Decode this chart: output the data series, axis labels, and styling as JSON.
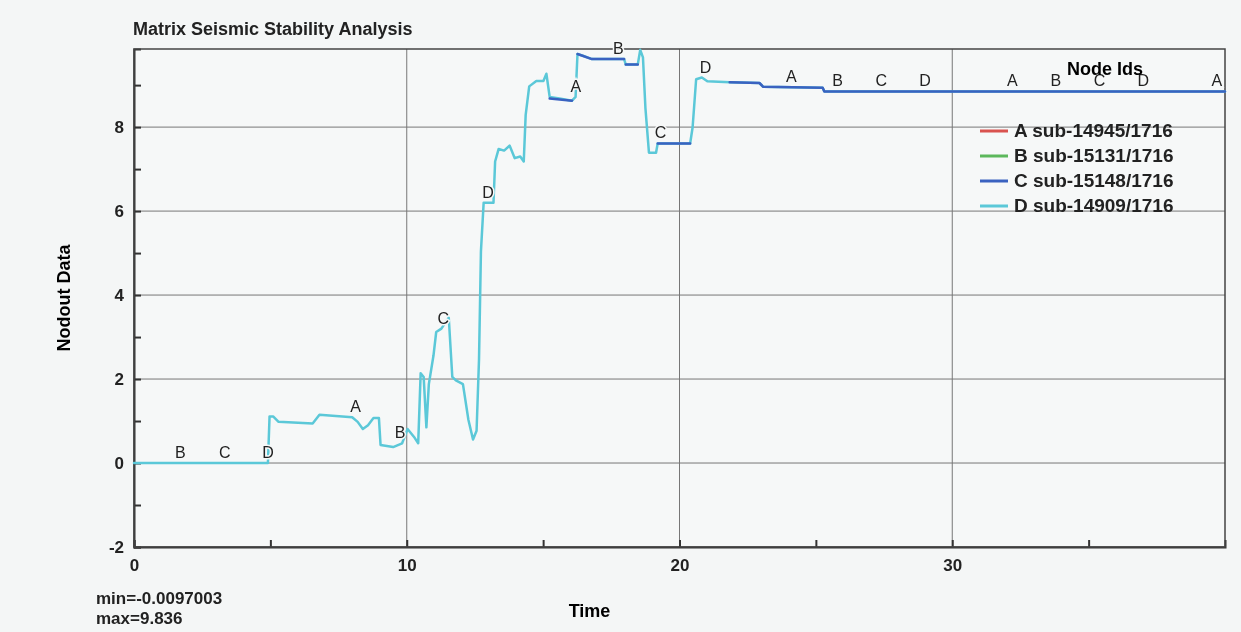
{
  "chart_data": {
    "type": "line",
    "title": "Matrix Seismic Stability Analysis",
    "xlabel": "Time",
    "ylabel": "Nodout Data",
    "legend_title": "Node Ids",
    "legend": "top right",
    "grid": true,
    "xlim": [
      0,
      40
    ],
    "ylim": [
      -2,
      9.86
    ],
    "xticks": [
      0,
      10,
      20,
      30,
      {
        "value": 5,
        "label": null
      },
      {
        "value": 15,
        "label": null
      },
      {
        "value": 25,
        "label": null
      },
      {
        "value": 35,
        "label": null
      }
    ],
    "yticks": [
      -2,
      0,
      2,
      4,
      6,
      8,
      {
        "value": -1,
        "label": null
      },
      {
        "value": 1,
        "label": null
      },
      {
        "value": 3,
        "label": null
      },
      {
        "value": 5,
        "label": null
      },
      {
        "value": 7,
        "label": null
      },
      {
        "value": 9,
        "label": null
      }
    ],
    "series": [
      {
        "name": "A sub-14945/1716",
        "color": "#d9534f"
      },
      {
        "name": "B sub-15131/1716",
        "color": "#5cb85c"
      },
      {
        "name": "C sub-15148/1716",
        "color": "#3a62c0",
        "x": [
          15.24,
          16.06,
          16.1,
          16.26,
          16.79,
          17.97,
          18.0,
          18.03,
          18.47,
          18.5,
          19.2,
          20.39,
          20.5,
          21.84,
          22.93,
          23.07,
          25.25,
          25.31,
          40
        ],
        "values": [
          8.68,
          8.63,
          null,
          9.74,
          9.62,
          9.62,
          null,
          9.49,
          9.49,
          null,
          7.61,
          7.61,
          null,
          9.07,
          9.05,
          8.96,
          8.94,
          8.85,
          8.85
        ]
      },
      {
        "name": "D sub-14909/1716",
        "color": "#5bc8d8",
        "x": [
          0,
          4.91,
          4.97,
          5.1,
          5.3,
          6.55,
          6.8,
          8.0,
          8.2,
          8.39,
          8.58,
          8.78,
          8.98,
          9.04,
          9.5,
          9.83,
          10.03,
          10.29,
          10.42,
          10.51,
          10.62,
          10.72,
          10.81,
          10.98,
          11.08,
          11.27,
          11.54,
          11.67,
          11.8,
          12.06,
          12.26,
          12.43,
          12.56,
          12.65,
          12.72,
          12.82,
          13.18,
          13.24,
          13.37,
          13.57,
          13.77,
          13.96,
          14.16,
          14.29,
          14.36,
          14.49,
          14.75,
          15.01,
          15.12,
          15.24,
          15.6,
          16.06,
          16.19,
          16.26,
          16.46,
          16.79,
          17.97,
          18.03,
          18.47,
          18.56,
          18.66,
          18.75,
          18.88,
          19.14,
          19.2,
          20.39,
          20.48,
          20.61,
          20.82,
          21.02,
          21.84,
          22.93,
          23.07,
          25.25,
          25.31,
          40
        ],
        "values": [
          0,
          0,
          1.11,
          1.11,
          0.98,
          0.94,
          1.15,
          1.09,
          0.98,
          0.81,
          0.9,
          1.07,
          1.07,
          0.43,
          0.38,
          0.47,
          0.81,
          0.6,
          0.47,
          2.14,
          2.05,
          0.85,
          1.88,
          2.56,
          3.12,
          3.2,
          3.46,
          2.05,
          1.97,
          1.88,
          1.03,
          0.56,
          0.77,
          2.48,
          5.04,
          6.2,
          6.2,
          7.18,
          7.48,
          7.44,
          7.56,
          7.26,
          7.3,
          7.18,
          8.29,
          8.97,
          9.1,
          9.1,
          9.27,
          8.72,
          8.68,
          8.63,
          8.72,
          9.74,
          9.7,
          9.62,
          9.62,
          9.49,
          9.49,
          9.84,
          9.66,
          8.46,
          7.39,
          7.39,
          7.61,
          7.61,
          7.99,
          9.14,
          9.18,
          9.09,
          9.07,
          9.05,
          8.96,
          8.94,
          8.85,
          8.85
        ]
      }
    ],
    "annotations": [
      {
        "text": "B",
        "x": 1.7,
        "y": 0
      },
      {
        "text": "C",
        "x": 3.33,
        "y": 0
      },
      {
        "text": "D",
        "x": 4.91,
        "y": 0
      },
      {
        "text": "A",
        "x": 8.12,
        "y": 1.09
      },
      {
        "text": "B",
        "x": 9.76,
        "y": 0.47
      },
      {
        "text": "C",
        "x": 11.34,
        "y": 3.2
      },
      {
        "text": "D",
        "x": 12.98,
        "y": 6.2
      },
      {
        "text": "A",
        "x": 16.2,
        "y": 8.72
      },
      {
        "text": "B",
        "x": 17.76,
        "y": 9.62
      },
      {
        "text": "C",
        "x": 19.3,
        "y": 7.61
      },
      {
        "text": "D",
        "x": 20.95,
        "y": 9.18
      },
      {
        "text": "A",
        "x": 24.1,
        "y": 8.96
      },
      {
        "text": "B",
        "x": 25.8,
        "y": 8.85
      },
      {
        "text": "C",
        "x": 27.4,
        "y": 8.85
      },
      {
        "text": "D",
        "x": 29.0,
        "y": 8.85
      },
      {
        "text": "A",
        "x": 32.2,
        "y": 8.85
      },
      {
        "text": "B",
        "x": 33.8,
        "y": 8.85
      },
      {
        "text": "C",
        "x": 35.4,
        "y": 8.85
      },
      {
        "text": "D",
        "x": 37.0,
        "y": 8.85
      },
      {
        "text": "A",
        "x": 39.7,
        "y": 8.85
      },
      "min=-0.0097003",
      "max=9.836"
    ]
  }
}
